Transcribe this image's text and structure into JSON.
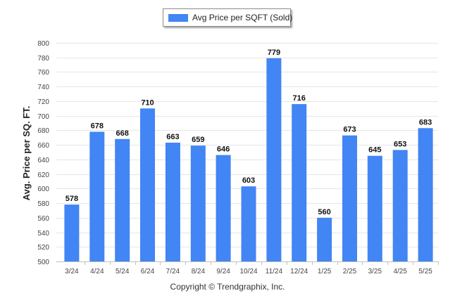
{
  "legend": {
    "label": "Avg Price per SQFT (Sold)"
  },
  "colors": {
    "bar": "#4285f4",
    "grid": "#e6e6e6",
    "axis": "#c0c0c0",
    "text": "#222222"
  },
  "copyright": "Copyright © Trendgraphix, Inc.",
  "chart_data": {
    "type": "bar",
    "title": "",
    "xlabel": "",
    "ylabel": "Avg. Price per SQ. FT.",
    "categories": [
      "3/24",
      "4/24",
      "5/24",
      "6/24",
      "7/24",
      "8/24",
      "9/24",
      "10/24",
      "11/24",
      "12/24",
      "1/25",
      "2/25",
      "3/25",
      "4/25",
      "5/25"
    ],
    "series": [
      {
        "name": "Avg Price per SQFT (Sold)",
        "values": [
          578,
          678,
          668,
          710,
          663,
          659,
          646,
          603,
          779,
          716,
          560,
          673,
          645,
          653,
          683
        ]
      }
    ],
    "ylim": [
      500,
      800
    ],
    "yticks": [
      500,
      520,
      540,
      560,
      580,
      600,
      620,
      640,
      660,
      680,
      700,
      720,
      740,
      760,
      780,
      800
    ],
    "grid": true,
    "legend_position": "top-center",
    "data_labels": true
  }
}
